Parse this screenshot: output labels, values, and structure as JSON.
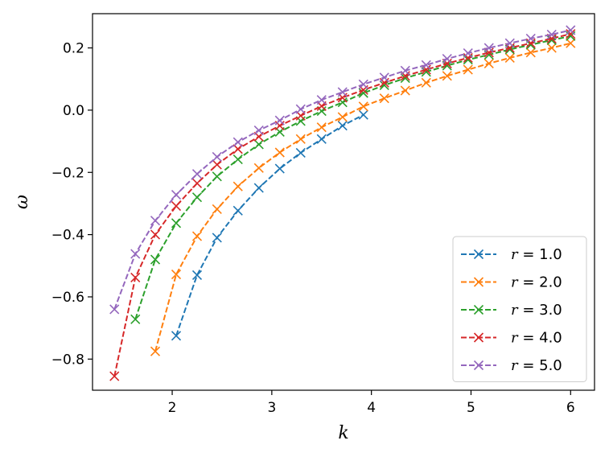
{
  "chart_data": {
    "type": "line",
    "title": "",
    "xlabel": "k",
    "ylabel": "ω",
    "xlim": [
      1.2,
      6.24
    ],
    "ylim": [
      -0.9,
      0.31
    ],
    "xticks": [
      2,
      3,
      4,
      5,
      6
    ],
    "xtick_labels": [
      "2",
      "3",
      "4",
      "5",
      "6"
    ],
    "yticks": [
      -0.8,
      -0.6,
      -0.4,
      -0.2,
      0.0,
      0.2
    ],
    "ytick_labels": [
      "−0.8",
      "−0.6",
      "−0.4",
      "−0.2",
      "0.0",
      "0.2"
    ],
    "grid": false,
    "legend_position": "lower-right",
    "marker": "x",
    "line_style": "dashed",
    "series": [
      {
        "name": "r = 1.0",
        "legend_var": "r",
        "legend_value": "= 1.0",
        "color": "#1f77b4",
        "x": [
          2.04,
          2.25,
          2.45,
          2.66,
          2.87,
          3.08,
          3.29,
          3.5,
          3.71,
          3.92
        ],
        "y": [
          -0.725,
          -0.53,
          -0.41,
          -0.323,
          -0.25,
          -0.188,
          -0.137,
          -0.093,
          -0.05,
          -0.015
        ]
      },
      {
        "name": "r = 2.0",
        "legend_var": "r",
        "legend_value": "= 2.0",
        "color": "#ff7f0e",
        "x": [
          1.83,
          2.04,
          2.25,
          2.45,
          2.66,
          2.87,
          3.08,
          3.29,
          3.5,
          3.71,
          3.92,
          4.13,
          4.34,
          4.55,
          4.76,
          4.97,
          5.18,
          5.39,
          5.6,
          5.81,
          6.0
        ],
        "y": [
          -0.775,
          -0.528,
          -0.405,
          -0.318,
          -0.245,
          -0.186,
          -0.136,
          -0.093,
          -0.055,
          -0.022,
          0.012,
          0.038,
          0.063,
          0.088,
          0.11,
          0.13,
          0.15,
          0.168,
          0.185,
          0.2,
          0.215
        ]
      },
      {
        "name": "r = 3.0",
        "legend_var": "r",
        "legend_value": "= 3.0",
        "color": "#2ca02c",
        "x": [
          1.63,
          1.83,
          2.04,
          2.25,
          2.45,
          2.66,
          2.87,
          3.08,
          3.29,
          3.5,
          3.71,
          3.92,
          4.13,
          4.34,
          4.55,
          4.76,
          4.97,
          5.18,
          5.39,
          5.6,
          5.81,
          6.0
        ],
        "y": [
          -0.672,
          -0.48,
          -0.363,
          -0.28,
          -0.213,
          -0.158,
          -0.11,
          -0.07,
          -0.035,
          -0.003,
          0.025,
          0.055,
          0.08,
          0.103,
          0.123,
          0.143,
          0.162,
          0.178,
          0.195,
          0.21,
          0.225,
          0.238
        ]
      },
      {
        "name": "r = 4.0",
        "legend_var": "r",
        "legend_value": "= 4.0",
        "color": "#d62728",
        "x": [
          1.42,
          1.63,
          1.83,
          2.04,
          2.25,
          2.45,
          2.66,
          2.87,
          3.08,
          3.29,
          3.5,
          3.71,
          3.92,
          4.13,
          4.34,
          4.55,
          4.76,
          4.97,
          5.18,
          5.39,
          5.6,
          5.81,
          6.0
        ],
        "y": [
          -0.855,
          -0.538,
          -0.4,
          -0.308,
          -0.235,
          -0.175,
          -0.125,
          -0.085,
          -0.05,
          -0.018,
          0.013,
          0.04,
          0.065,
          0.088,
          0.11,
          0.13,
          0.15,
          0.168,
          0.185,
          0.2,
          0.215,
          0.23,
          0.245
        ]
      },
      {
        "name": "r = 5.0",
        "legend_var": "r",
        "legend_value": "= 5.0",
        "color": "#9467bd",
        "x": [
          1.42,
          1.63,
          1.83,
          2.04,
          2.25,
          2.45,
          2.66,
          2.87,
          3.08,
          3.29,
          3.5,
          3.71,
          3.92,
          4.13,
          4.34,
          4.55,
          4.76,
          4.97,
          5.18,
          5.39,
          5.6,
          5.81,
          6.0
        ],
        "y": [
          -0.64,
          -0.462,
          -0.355,
          -0.272,
          -0.205,
          -0.15,
          -0.103,
          -0.065,
          -0.033,
          0.003,
          0.033,
          0.058,
          0.083,
          0.105,
          0.127,
          0.145,
          0.165,
          0.183,
          0.2,
          0.215,
          0.23,
          0.243,
          0.257
        ]
      }
    ]
  }
}
